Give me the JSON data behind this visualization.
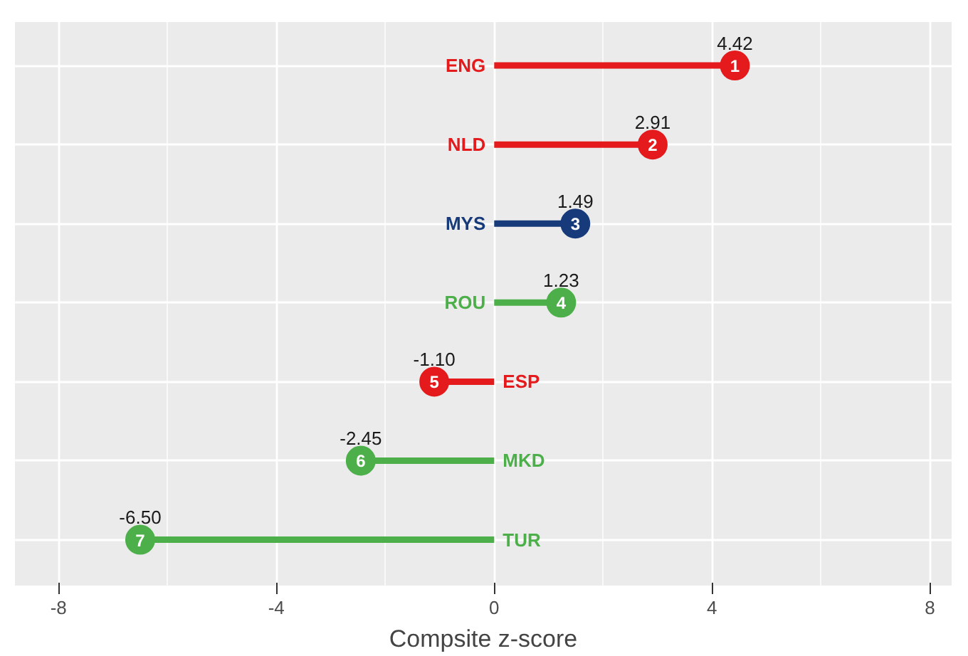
{
  "chart_data": {
    "type": "lollipop",
    "orientation": "horizontal",
    "xlabel": "Compsite z-score",
    "categories": [
      "ENG",
      "NLD",
      "MYS",
      "ROU",
      "ESP",
      "MKD",
      "TUR"
    ],
    "values": [
      4.42,
      2.91,
      1.49,
      1.23,
      -1.1,
      -2.45,
      -6.5
    ],
    "value_labels": [
      "4.42",
      "2.91",
      "1.49",
      "1.23",
      "-1.10",
      "-2.45",
      "-6.50"
    ],
    "colors": [
      "#e41a1c",
      "#e41a1c",
      "#173b7a",
      "#4daf4a",
      "#e41a1c",
      "#4daf4a",
      "#4daf4a"
    ],
    "annotations": [
      {
        "text": "1",
        "x": 4.42,
        "y": "ENG"
      },
      {
        "text": "2",
        "x": 2.91,
        "y": "NLD"
      },
      {
        "text": "3",
        "x": 1.49,
        "y": "MYS"
      },
      {
        "text": "4",
        "x": 1.23,
        "y": "ROU"
      },
      {
        "text": "5",
        "x": -1.1,
        "y": "ESP"
      },
      {
        "text": "6",
        "x": -2.45,
        "y": "MKD"
      },
      {
        "text": "7",
        "x": -6.5,
        "y": "TUR"
      }
    ],
    "xlim": [
      -8.8,
      8.4
    ],
    "xticks": [
      -8,
      -4,
      0,
      4,
      8
    ],
    "grid": true
  }
}
